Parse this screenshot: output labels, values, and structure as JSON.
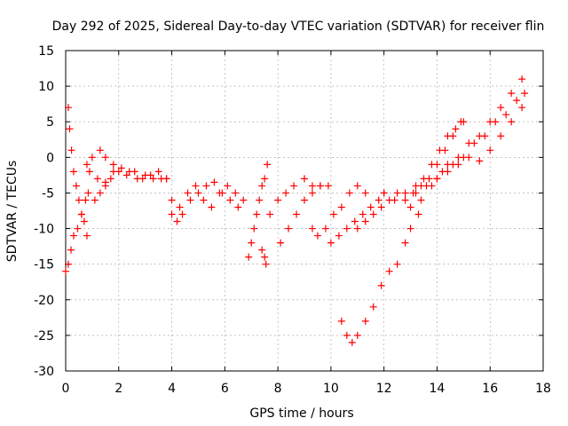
{
  "chart_data": {
    "type": "scatter",
    "title": "Day 292 of 2025, Sidereal Day-to-day VTEC variation (SDTVAR) for receiver flin",
    "xlabel": "GPS time / hours",
    "ylabel": "SDTVAR / TECUs",
    "xlim": [
      0,
      18
    ],
    "ylim": [
      -30,
      15
    ],
    "x_ticks": [
      0,
      2,
      4,
      6,
      8,
      10,
      12,
      14,
      16,
      18
    ],
    "x_tick_labels": [
      "0",
      "2",
      "4",
      "6",
      "8",
      "10",
      "12",
      "14",
      "16",
      "18"
    ],
    "y_ticks": [
      -30,
      -25,
      -20,
      -15,
      -10,
      -5,
      0,
      5,
      10,
      15
    ],
    "y_tick_labels": [
      "-30",
      "-25",
      "-20",
      "-15",
      "-10",
      "-5",
      "0",
      "5",
      "10",
      "15"
    ],
    "grid": true,
    "marker": "+",
    "colors": {
      "series": "#ff0000",
      "grid": "#a0a0a0",
      "axis": "#000000"
    },
    "series": [
      {
        "name": "s1",
        "x": [
          0.0,
          0.1,
          0.2,
          0.3,
          0.45,
          0.6,
          0.75,
          0.85
        ],
        "y": [
          -16,
          -15,
          -13,
          -11,
          -10,
          -8,
          -6,
          -5
        ]
      },
      {
        "name": "s2",
        "x": [
          0.1,
          0.15,
          0.22,
          0.3,
          0.4,
          0.5,
          0.6,
          0.7,
          0.8
        ],
        "y": [
          7,
          4,
          1,
          -2,
          -4,
          -6,
          -8,
          -9,
          -11
        ]
      },
      {
        "name": "s3",
        "x": [
          0.8,
          1.0,
          1.3,
          1.5,
          1.8,
          2.0,
          2.3,
          2.6,
          2.9,
          3.2,
          3.5,
          3.8
        ],
        "y": [
          -1,
          0,
          1,
          0,
          -1,
          -2,
          -2.5,
          -2,
          -3,
          -2.5,
          -2,
          -3
        ]
      },
      {
        "name": "s4",
        "x": [
          0.9,
          1.2,
          1.5,
          1.8,
          2.1,
          2.4,
          2.7,
          3.0,
          3.3,
          3.6
        ],
        "y": [
          -2,
          -3,
          -3.5,
          -2,
          -1.5,
          -2,
          -3,
          -2.5,
          -3,
          -3
        ]
      },
      {
        "name": "s5",
        "x": [
          1.1,
          1.3,
          1.5,
          1.7
        ],
        "y": [
          -6,
          -5,
          -4,
          -3
        ]
      },
      {
        "name": "s6",
        "x": [
          3.8,
          4.0,
          4.2,
          4.4,
          4.7,
          5.0,
          5.3,
          5.6,
          5.9,
          6.2,
          6.5
        ],
        "y": [
          -3,
          -6,
          -9,
          -8,
          -6,
          -5,
          -4,
          -3.5,
          -5,
          -6,
          -7
        ]
      },
      {
        "name": "s7",
        "x": [
          4.0,
          4.3,
          4.6,
          4.9,
          5.2,
          5.5,
          5.8,
          6.1,
          6.4,
          6.7
        ],
        "y": [
          -8,
          -7,
          -5,
          -4,
          -6,
          -7,
          -5,
          -4,
          -5,
          -6
        ]
      },
      {
        "name": "s8",
        "x": [
          6.9,
          7.0,
          7.1,
          7.2,
          7.3,
          7.4,
          7.5,
          7.6,
          7.7
        ],
        "y": [
          -14,
          -12,
          -10,
          -8,
          -6,
          -4,
          -3,
          -1,
          -8
        ]
      },
      {
        "name": "s9",
        "x": [
          7.4,
          7.5,
          7.55
        ],
        "y": [
          -13,
          -14,
          -15
        ]
      },
      {
        "name": "s10",
        "x": [
          8.0,
          8.3,
          8.6,
          9.0,
          9.3,
          9.6,
          9.9
        ],
        "y": [
          -6,
          -5,
          -4,
          -3,
          -4,
          -4,
          -4
        ]
      },
      {
        "name": "s11",
        "x": [
          8.1,
          8.4,
          8.7,
          9.0,
          9.3,
          9.6
        ],
        "y": [
          -12,
          -10,
          -8,
          -6,
          -5,
          -4
        ]
      },
      {
        "name": "s12",
        "x": [
          9.3,
          9.5,
          9.8,
          10.1,
          10.4,
          10.7,
          11.0,
          11.3
        ],
        "y": [
          -10,
          -11,
          -10,
          -8,
          -7,
          -5,
          -4,
          -5
        ]
      },
      {
        "name": "s13",
        "x": [
          10.0,
          10.3,
          10.6,
          10.9,
          11.2,
          11.5,
          11.8,
          12.0
        ],
        "y": [
          -12,
          -11,
          -10,
          -9,
          -8,
          -7,
          -6,
          -5
        ]
      },
      {
        "name": "s14",
        "x": [
          10.4,
          10.6,
          10.8,
          11.0,
          11.3,
          11.6,
          11.9,
          12.2,
          12.5,
          12.8,
          13.0,
          13.3
        ],
        "y": [
          -23,
          -25,
          -26,
          -25,
          -23,
          -21,
          -18,
          -16,
          -15,
          -12,
          -10,
          -8
        ]
      },
      {
        "name": "s15",
        "x": [
          11.0,
          11.3,
          11.6,
          11.9,
          12.2,
          12.5,
          12.8,
          13.1,
          13.4,
          13.7,
          14.0,
          14.3,
          14.6,
          14.9
        ],
        "y": [
          -10,
          -9,
          -8,
          -7,
          -6,
          -5,
          -6,
          -5,
          -4,
          -3,
          -1,
          1,
          3,
          5
        ]
      },
      {
        "name": "s16",
        "x": [
          12.0,
          12.4,
          12.8,
          13.2,
          13.5,
          13.8,
          14.1,
          14.4,
          14.7,
          15.0
        ],
        "y": [
          -5,
          -6,
          -5,
          -4,
          -3,
          -1,
          1,
          3,
          4,
          5
        ]
      },
      {
        "name": "s17",
        "x": [
          13.0,
          13.4,
          13.8,
          14.2,
          14.6,
          15.0,
          15.4,
          15.8,
          16.2,
          16.6,
          17.0,
          17.3
        ],
        "y": [
          -7,
          -6,
          -4,
          -2,
          -1,
          0,
          2,
          3,
          5,
          6,
          8,
          9
        ]
      },
      {
        "name": "s18",
        "x": [
          13.2,
          13.6,
          14.0,
          14.4,
          14.8,
          15.2,
          15.6,
          16.0,
          16.4,
          16.8,
          17.2
        ],
        "y": [
          -5,
          -4,
          -3,
          -1,
          0,
          2,
          3,
          5,
          7,
          9,
          11
        ]
      },
      {
        "name": "s19",
        "x": [
          14.0,
          14.4,
          14.8,
          15.2,
          15.6,
          16.0,
          16.4,
          16.8,
          17.2
        ],
        "y": [
          -3,
          -2,
          -1,
          0,
          -0.5,
          1,
          3,
          5,
          7
        ]
      }
    ]
  }
}
